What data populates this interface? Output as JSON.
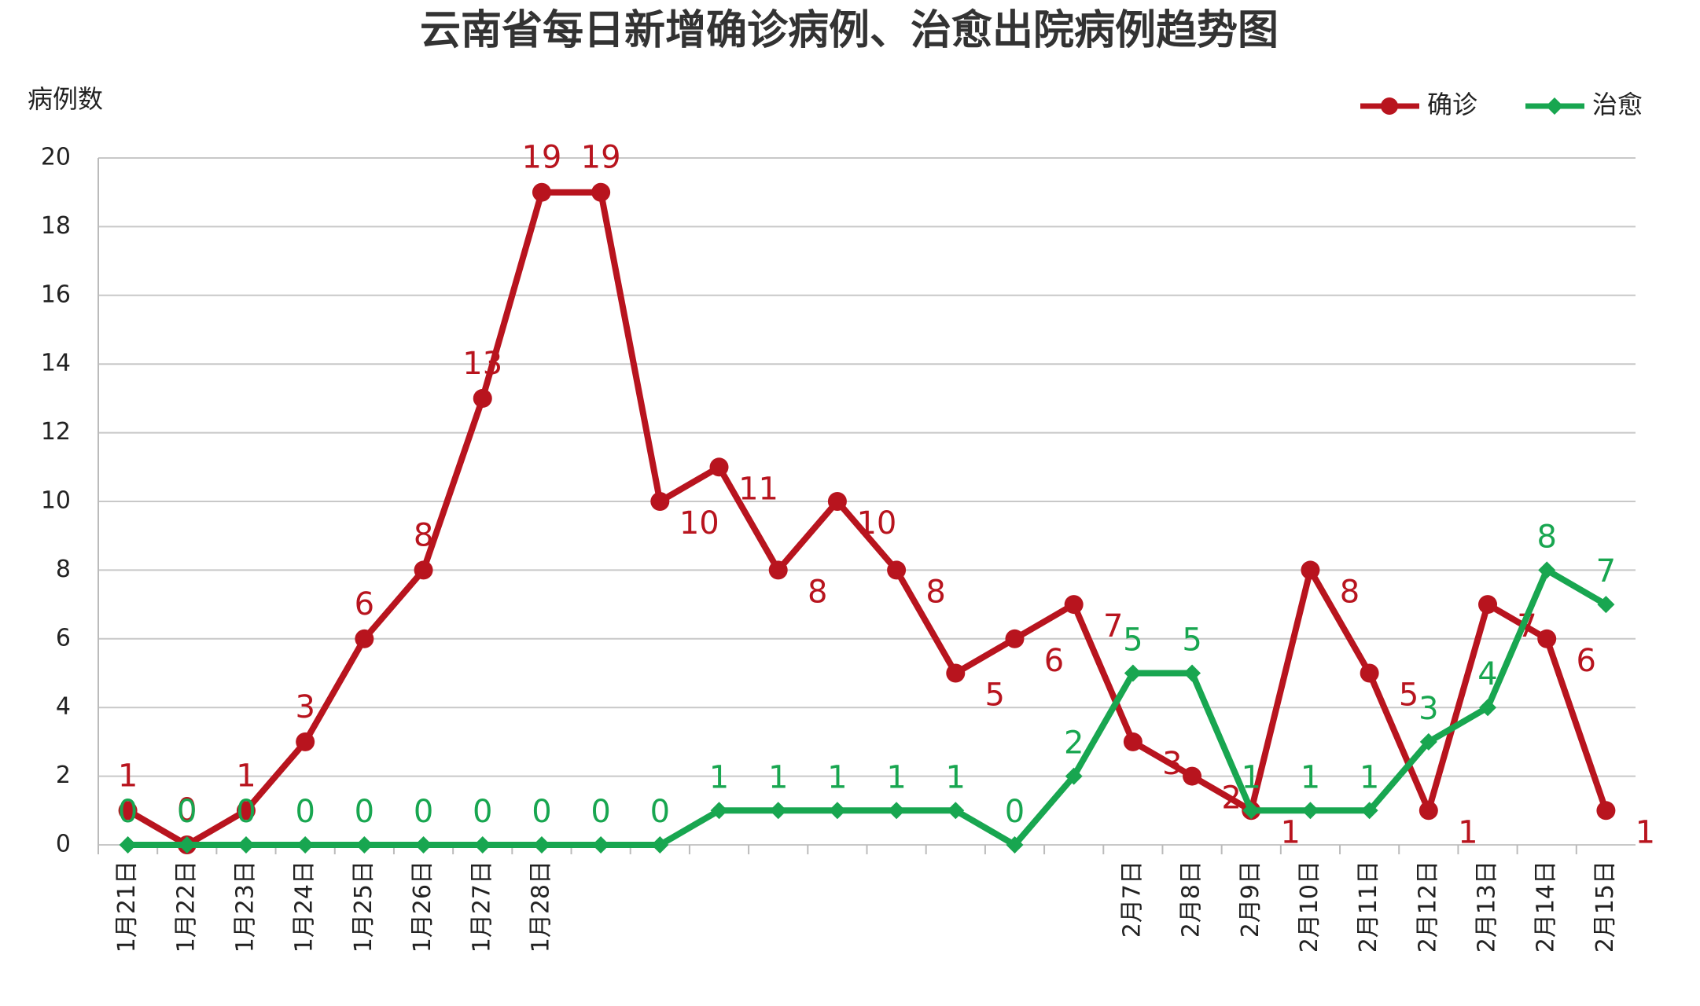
{
  "chart_data": {
    "type": "line",
    "title": "云南省每日新增确诊病例、治愈出院病例趋势图",
    "y_label": "病例数",
    "categories": [
      "1月21日",
      "1月22日",
      "1月23日",
      "1月24日",
      "1月25日",
      "1月26日",
      "1月27日",
      "1月28日",
      null,
      null,
      null,
      null,
      null,
      null,
      null,
      null,
      null,
      "2月7日",
      "2月8日",
      "2月9日",
      "2月10日",
      "2月11日",
      "2月12日",
      "2月13日",
      "2月14日",
      "2月15日"
    ],
    "series": [
      {
        "name": "确诊",
        "color": "#b8141e",
        "marker": "circle",
        "values": [
          1,
          0,
          1,
          3,
          6,
          8,
          13,
          19,
          19,
          10,
          11,
          8,
          10,
          8,
          5,
          6,
          7,
          3,
          2,
          1,
          8,
          5,
          1,
          7,
          6,
          1
        ]
      },
      {
        "name": "治愈",
        "color": "#18a650",
        "marker": "diamond",
        "values": [
          0,
          0,
          0,
          0,
          0,
          0,
          0,
          0,
          0,
          0,
          1,
          1,
          1,
          1,
          1,
          0,
          2,
          5,
          5,
          1,
          1,
          1,
          3,
          4,
          8,
          7
        ]
      }
    ],
    "ylim": [
      0,
      20
    ],
    "yticks": [
      0,
      2,
      4,
      6,
      8,
      10,
      12,
      14,
      16,
      18,
      20
    ],
    "grid": true,
    "legend": "top-right"
  }
}
